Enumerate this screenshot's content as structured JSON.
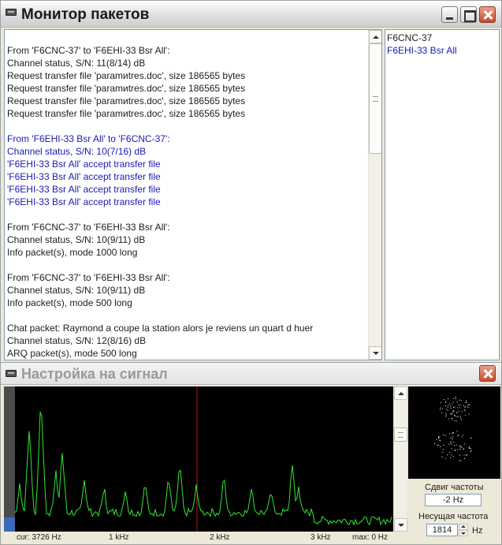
{
  "monitor": {
    "title": "Монитор пакетов",
    "log": [
      {
        "text": "From 'F6CNC-37' to 'F6EHI-33 Bsr All':",
        "color": "black"
      },
      {
        "text": "Channel status, S/N: 11(8/14) dB",
        "color": "black"
      },
      {
        "text": "Request transfer file 'paramиtres.doc', size 186565 bytes",
        "color": "black"
      },
      {
        "text": "Request transfer file 'paramиtres.doc', size 186565 bytes",
        "color": "black"
      },
      {
        "text": "Request transfer file 'paramиtres.doc', size 186565 bytes",
        "color": "black"
      },
      {
        "text": "Request transfer file 'paramиtres.doc', size 186565 bytes",
        "color": "black"
      },
      {
        "text": "",
        "color": "black"
      },
      {
        "text": "From 'F6EHI-33 Bsr All' to 'F6CNC-37':",
        "color": "blue"
      },
      {
        "text": "Channel status, S/N: 10(7/16) dB",
        "color": "blue"
      },
      {
        "text": "'F6EHI-33 Bsr All' accept transfer file",
        "color": "blue"
      },
      {
        "text": "'F6EHI-33 Bsr All' accept transfer file",
        "color": "blue"
      },
      {
        "text": "'F6EHI-33 Bsr All' accept transfer file",
        "color": "blue"
      },
      {
        "text": "'F6EHI-33 Bsr All' accept transfer file",
        "color": "blue"
      },
      {
        "text": "",
        "color": "black"
      },
      {
        "text": "From 'F6CNC-37' to 'F6EHI-33 Bsr All':",
        "color": "black"
      },
      {
        "text": "Channel status, S/N: 10(9/11) dB",
        "color": "black"
      },
      {
        "text": "Info packet(s), mode 1000 long",
        "color": "black"
      },
      {
        "text": "",
        "color": "black"
      },
      {
        "text": "From 'F6CNC-37' to 'F6EHI-33 Bsr All':",
        "color": "black"
      },
      {
        "text": "Channel status, S/N: 10(9/11) dB",
        "color": "black"
      },
      {
        "text": "Info packet(s), mode 500 long",
        "color": "black"
      },
      {
        "text": "",
        "color": "black"
      },
      {
        "text": "Chat packet: Raymond a coupe la station alors je reviens un quart d huer",
        "color": "black"
      },
      {
        "text": "Channel status, S/N: 12(8/16) dB",
        "color": "black"
      },
      {
        "text": "ARQ packet(s), mode 500 long",
        "color": "black"
      }
    ],
    "stations": [
      {
        "name": "F6CNC-37",
        "color": "black"
      },
      {
        "name": "F6EHI-33 Bsr All",
        "color": "blue"
      }
    ]
  },
  "tuning": {
    "title": "Настройка на сигнал",
    "axis": {
      "cur": "cur: 3726 Hz",
      "k1": "1 kHz",
      "k2": "2 kHz",
      "k3": "3 kHz",
      "max": "max: 0 Hz"
    },
    "freq_shift_label": "Сдвиг частоты",
    "freq_shift_value": "-2 Hz",
    "carrier_label": "Несущая частота",
    "carrier_value": "1814",
    "carrier_unit": "Hz",
    "colors": {
      "spectrum_line": "#2ee82e",
      "cursor_line": "#c01010",
      "blue_text": "#1a1ab4"
    }
  }
}
